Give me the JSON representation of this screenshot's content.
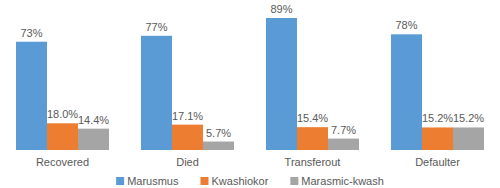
{
  "chart_data": {
    "type": "bar",
    "categories": [
      "Recovered",
      "Died",
      "Transferout",
      "Defaulter"
    ],
    "series": [
      {
        "name": "Marusmus",
        "color": "#5b9bd5",
        "values": [
          73,
          77,
          89,
          78
        ],
        "value_labels": [
          "73%",
          "77%",
          "89%",
          "78%"
        ]
      },
      {
        "name": "Kwashiokor",
        "color": "#ed7d31",
        "values": [
          18.0,
          17.1,
          15.4,
          15.2
        ],
        "value_labels": [
          "18.0%",
          "17.1%",
          "15.4%",
          "15.2%"
        ]
      },
      {
        "name": "Marasmic-kwash",
        "color": "#a5a5a5",
        "values": [
          14.4,
          5.7,
          7.7,
          15.2
        ],
        "value_labels": [
          "14.4%",
          "5.7%",
          "7.7%",
          "15.2%"
        ]
      }
    ],
    "data_labels": true,
    "legend": "bottom",
    "grid": false,
    "tick_labels": "x"
  }
}
